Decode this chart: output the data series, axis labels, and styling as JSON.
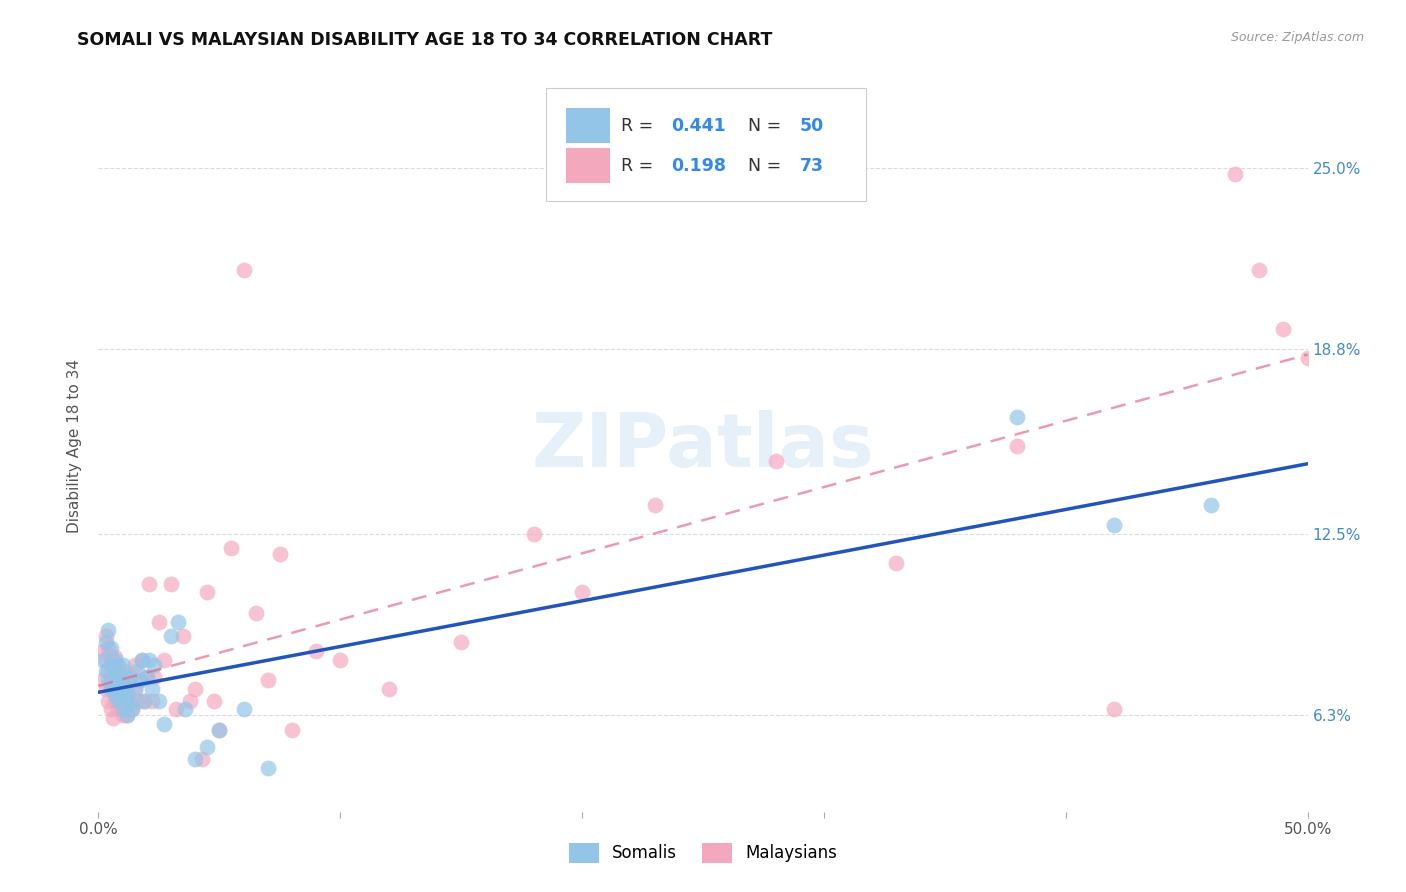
{
  "title": "SOMALI VS MALAYSIAN DISABILITY AGE 18 TO 34 CORRELATION CHART",
  "source": "Source: ZipAtlas.com",
  "ylabel": "Disability Age 18 to 34",
  "ytick_labels": [
    "6.3%",
    "12.5%",
    "18.8%",
    "25.0%"
  ],
  "ytick_values": [
    0.063,
    0.125,
    0.188,
    0.25
  ],
  "xlim": [
    0.0,
    0.5
  ],
  "ylim": [
    0.03,
    0.28
  ],
  "somali_R": 0.441,
  "somali_N": 50,
  "malaysian_R": 0.198,
  "malaysian_N": 73,
  "somali_color": "#92C5E8",
  "malaysian_color": "#F4A8BE",
  "somali_line_color": "#2255BB",
  "malaysian_line_color": "#DD6688",
  "watermark": "ZIPatlas",
  "background_color": "#FFFFFF",
  "somali_x": [
    0.002,
    0.003,
    0.003,
    0.004,
    0.004,
    0.005,
    0.005,
    0.005,
    0.006,
    0.006,
    0.007,
    0.007,
    0.007,
    0.008,
    0.008,
    0.008,
    0.009,
    0.009,
    0.01,
    0.01,
    0.01,
    0.011,
    0.011,
    0.012,
    0.012,
    0.013,
    0.013,
    0.014,
    0.015,
    0.016,
    0.017,
    0.018,
    0.019,
    0.02,
    0.021,
    0.022,
    0.023,
    0.025,
    0.027,
    0.03,
    0.033,
    0.036,
    0.04,
    0.045,
    0.05,
    0.06,
    0.07,
    0.38,
    0.42,
    0.46
  ],
  "somali_y": [
    0.082,
    0.078,
    0.088,
    0.075,
    0.092,
    0.072,
    0.08,
    0.086,
    0.074,
    0.079,
    0.07,
    0.076,
    0.082,
    0.068,
    0.074,
    0.08,
    0.071,
    0.077,
    0.065,
    0.073,
    0.08,
    0.068,
    0.076,
    0.063,
    0.07,
    0.067,
    0.075,
    0.065,
    0.072,
    0.078,
    0.075,
    0.082,
    0.068,
    0.076,
    0.082,
    0.072,
    0.08,
    0.068,
    0.06,
    0.09,
    0.095,
    0.065,
    0.048,
    0.052,
    0.058,
    0.065,
    0.045,
    0.165,
    0.128,
    0.135
  ],
  "malaysian_x": [
    0.002,
    0.002,
    0.003,
    0.003,
    0.003,
    0.004,
    0.004,
    0.004,
    0.005,
    0.005,
    0.005,
    0.006,
    0.006,
    0.006,
    0.007,
    0.007,
    0.007,
    0.008,
    0.008,
    0.009,
    0.009,
    0.01,
    0.01,
    0.01,
    0.011,
    0.011,
    0.012,
    0.012,
    0.013,
    0.013,
    0.014,
    0.015,
    0.015,
    0.016,
    0.017,
    0.018,
    0.019,
    0.02,
    0.021,
    0.022,
    0.023,
    0.025,
    0.027,
    0.03,
    0.032,
    0.035,
    0.038,
    0.04,
    0.043,
    0.045,
    0.048,
    0.05,
    0.055,
    0.06,
    0.065,
    0.07,
    0.075,
    0.08,
    0.09,
    0.1,
    0.12,
    0.15,
    0.18,
    0.2,
    0.23,
    0.28,
    0.33,
    0.38,
    0.42,
    0.47,
    0.48,
    0.49,
    0.5
  ],
  "malaysian_y": [
    0.075,
    0.085,
    0.072,
    0.082,
    0.09,
    0.068,
    0.078,
    0.086,
    0.065,
    0.075,
    0.083,
    0.062,
    0.072,
    0.08,
    0.068,
    0.076,
    0.083,
    0.065,
    0.073,
    0.068,
    0.076,
    0.063,
    0.07,
    0.078,
    0.065,
    0.073,
    0.063,
    0.072,
    0.068,
    0.076,
    0.065,
    0.072,
    0.08,
    0.068,
    0.075,
    0.082,
    0.068,
    0.076,
    0.108,
    0.068,
    0.076,
    0.095,
    0.082,
    0.108,
    0.065,
    0.09,
    0.068,
    0.072,
    0.048,
    0.105,
    0.068,
    0.058,
    0.12,
    0.215,
    0.098,
    0.075,
    0.118,
    0.058,
    0.085,
    0.082,
    0.072,
    0.088,
    0.125,
    0.105,
    0.135,
    0.15,
    0.115,
    0.155,
    0.065,
    0.248,
    0.215,
    0.195,
    0.185
  ]
}
